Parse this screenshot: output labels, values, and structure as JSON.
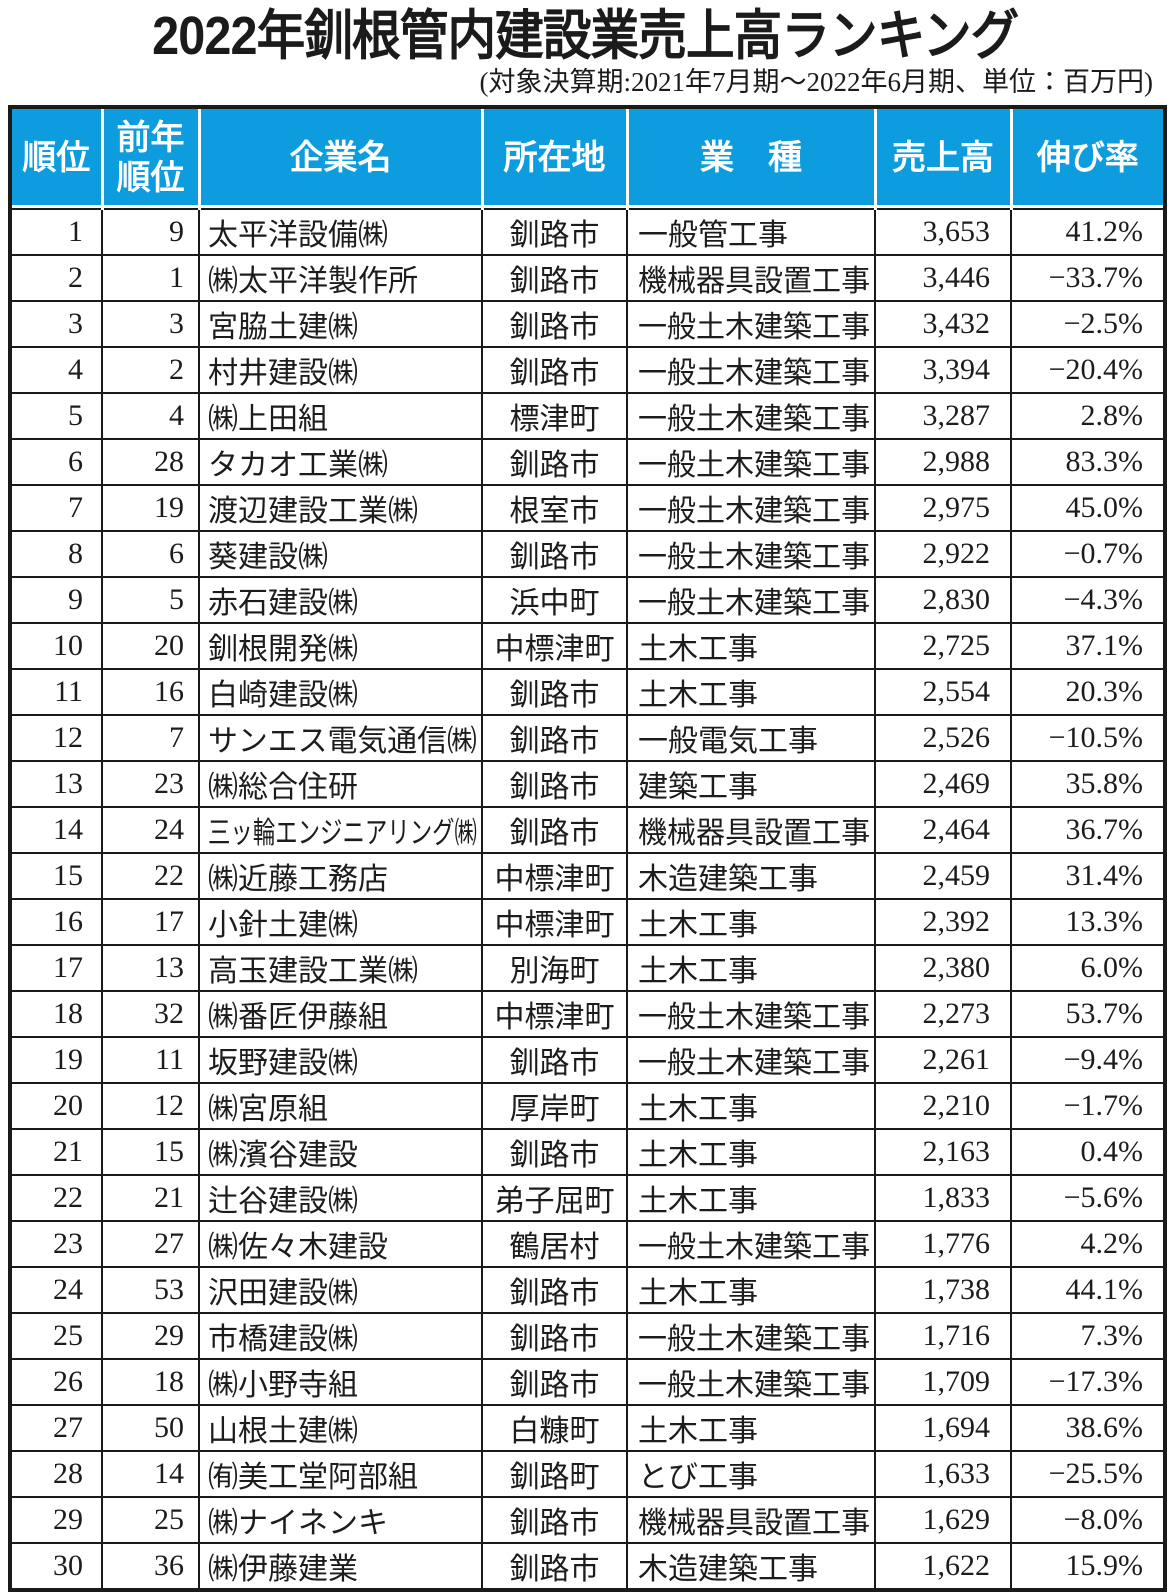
{
  "page": {
    "title": "2022年釧根管内建設業売上高ランキング",
    "subtitle": "(対象決算期:2021年7月期～2022年6月期、単位：百万円)"
  },
  "colors": {
    "header_bg": "#0d9cde",
    "header_text": "#ffffff",
    "grid": "#1a1a1a",
    "body_text": "#1c1c1c"
  },
  "chart_data": {
    "type": "table",
    "title": "2022年釧根管内建設業売上高ランキング",
    "subtitle": "(対象決算期:2021年7月期～2022年6月期、単位：百万円)",
    "unit": "百万円",
    "columns": [
      "順位",
      "前年順位",
      "企業名",
      "所在地",
      "業　種",
      "売上高",
      "伸び率"
    ],
    "rows": [
      [
        "1",
        "9",
        "太平洋設備㈱",
        "釧路市",
        "一般管工事",
        "3,653",
        "41.2%"
      ],
      [
        "2",
        "1",
        "㈱太平洋製作所",
        "釧路市",
        "機械器具設置工事",
        "3,446",
        "−33.7%"
      ],
      [
        "3",
        "3",
        "宮脇土建㈱",
        "釧路市",
        "一般土木建築工事",
        "3,432",
        "−2.5%"
      ],
      [
        "4",
        "2",
        "村井建設㈱",
        "釧路市",
        "一般土木建築工事",
        "3,394",
        "−20.4%"
      ],
      [
        "5",
        "4",
        "㈱上田組",
        "標津町",
        "一般土木建築工事",
        "3,287",
        "2.8%"
      ],
      [
        "6",
        "28",
        "タカオ工業㈱",
        "釧路市",
        "一般土木建築工事",
        "2,988",
        "83.3%"
      ],
      [
        "7",
        "19",
        "渡辺建設工業㈱",
        "根室市",
        "一般土木建築工事",
        "2,975",
        "45.0%"
      ],
      [
        "8",
        "6",
        "葵建設㈱",
        "釧路市",
        "一般土木建築工事",
        "2,922",
        "−0.7%"
      ],
      [
        "9",
        "5",
        "赤石建設㈱",
        "浜中町",
        "一般土木建築工事",
        "2,830",
        "−4.3%"
      ],
      [
        "10",
        "20",
        "釧根開発㈱",
        "中標津町",
        "土木工事",
        "2,725",
        "37.1%"
      ],
      [
        "11",
        "16",
        "白崎建設㈱",
        "釧路市",
        "土木工事",
        "2,554",
        "20.3%"
      ],
      [
        "12",
        "7",
        "サンエス電気通信㈱",
        "釧路市",
        "一般電気工事",
        "2,526",
        "−10.5%"
      ],
      [
        "13",
        "23",
        "㈱総合住研",
        "釧路市",
        "建築工事",
        "2,469",
        "35.8%"
      ],
      [
        "14",
        "24",
        "三ッ輪エンジニアリング㈱",
        "釧路市",
        "機械器具設置工事",
        "2,464",
        "36.7%"
      ],
      [
        "15",
        "22",
        "㈱近藤工務店",
        "中標津町",
        "木造建築工事",
        "2,459",
        "31.4%"
      ],
      [
        "16",
        "17",
        "小針土建㈱",
        "中標津町",
        "土木工事",
        "2,392",
        "13.3%"
      ],
      [
        "17",
        "13",
        "高玉建設工業㈱",
        "別海町",
        "土木工事",
        "2,380",
        "6.0%"
      ],
      [
        "18",
        "32",
        "㈱番匠伊藤組",
        "中標津町",
        "一般土木建築工事",
        "2,273",
        "53.7%"
      ],
      [
        "19",
        "11",
        "坂野建設㈱",
        "釧路市",
        "一般土木建築工事",
        "2,261",
        "−9.4%"
      ],
      [
        "20",
        "12",
        "㈱宮原組",
        "厚岸町",
        "土木工事",
        "2,210",
        "−1.7%"
      ],
      [
        "21",
        "15",
        "㈱濱谷建設",
        "釧路市",
        "土木工事",
        "2,163",
        "0.4%"
      ],
      [
        "22",
        "21",
        "辻谷建設㈱",
        "弟子屈町",
        "土木工事",
        "1,833",
        "−5.6%"
      ],
      [
        "23",
        "27",
        "㈱佐々木建設",
        "鶴居村",
        "一般土木建築工事",
        "1,776",
        "4.2%"
      ],
      [
        "24",
        "53",
        "沢田建設㈱",
        "釧路市",
        "土木工事",
        "1,738",
        "44.1%"
      ],
      [
        "25",
        "29",
        "市橋建設㈱",
        "釧路市",
        "一般土木建築工事",
        "1,716",
        "7.3%"
      ],
      [
        "26",
        "18",
        "㈱小野寺組",
        "釧路市",
        "一般土木建築工事",
        "1,709",
        "−17.3%"
      ],
      [
        "27",
        "50",
        "山根土建㈱",
        "白糠町",
        "土木工事",
        "1,694",
        "38.6%"
      ],
      [
        "28",
        "14",
        "㈲美工堂阿部組",
        "釧路町",
        "とび工事",
        "1,633",
        "−25.5%"
      ],
      [
        "29",
        "25",
        "㈱ナイネンキ",
        "釧路市",
        "機械器具設置工事",
        "1,629",
        "−8.0%"
      ],
      [
        "30",
        "36",
        "㈱伊藤建業",
        "釧路市",
        "木造建築工事",
        "1,622",
        "15.9%"
      ]
    ]
  }
}
